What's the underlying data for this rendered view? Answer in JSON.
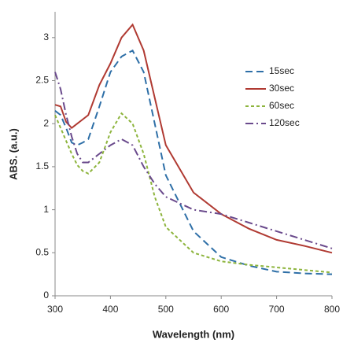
{
  "chart_data": {
    "type": "line",
    "x_label": "Wavelength (nm)",
    "y_label": "ABS. (a.u.)",
    "x": [
      300,
      310,
      320,
      330,
      340,
      350,
      360,
      380,
      400,
      420,
      440,
      460,
      480,
      500,
      550,
      600,
      650,
      700,
      750,
      800
    ],
    "series": [
      {
        "name": "15sec",
        "color": "#2e6fa7",
        "dash": "9,5",
        "values": [
          2.15,
          2.1,
          1.95,
          1.78,
          1.75,
          1.78,
          1.82,
          2.2,
          2.6,
          2.78,
          2.85,
          2.6,
          2.0,
          1.4,
          0.75,
          0.45,
          0.35,
          0.28,
          0.26,
          0.25
        ]
      },
      {
        "name": "30sec",
        "color": "#b03a32",
        "dash": "none",
        "values": [
          2.22,
          2.2,
          2.02,
          1.95,
          2.0,
          2.05,
          2.1,
          2.45,
          2.7,
          3.0,
          3.15,
          2.85,
          2.3,
          1.75,
          1.2,
          0.95,
          0.78,
          0.65,
          0.58,
          0.5
        ]
      },
      {
        "name": "60sec",
        "color": "#8db43c",
        "dash": "4,3",
        "values": [
          2.1,
          1.95,
          1.8,
          1.65,
          1.52,
          1.45,
          1.42,
          1.55,
          1.9,
          2.12,
          2.0,
          1.65,
          1.15,
          0.8,
          0.5,
          0.4,
          0.36,
          0.33,
          0.3,
          0.27
        ]
      },
      {
        "name": "120sec",
        "color": "#6a4a8c",
        "dash": "10,4,2,4",
        "values": [
          2.6,
          2.4,
          2.1,
          1.85,
          1.65,
          1.55,
          1.55,
          1.65,
          1.75,
          1.82,
          1.75,
          1.5,
          1.3,
          1.15,
          1.0,
          0.95,
          0.85,
          0.75,
          0.65,
          0.55
        ]
      }
    ],
    "xlim": [
      300,
      800
    ],
    "xticks": [
      300,
      400,
      500,
      600,
      700,
      800
    ],
    "ylim": [
      0,
      3.3
    ],
    "yticks": [
      0,
      0.5,
      1,
      1.5,
      2,
      2.5,
      3
    ],
    "grid": false,
    "legend": "upper-right"
  }
}
